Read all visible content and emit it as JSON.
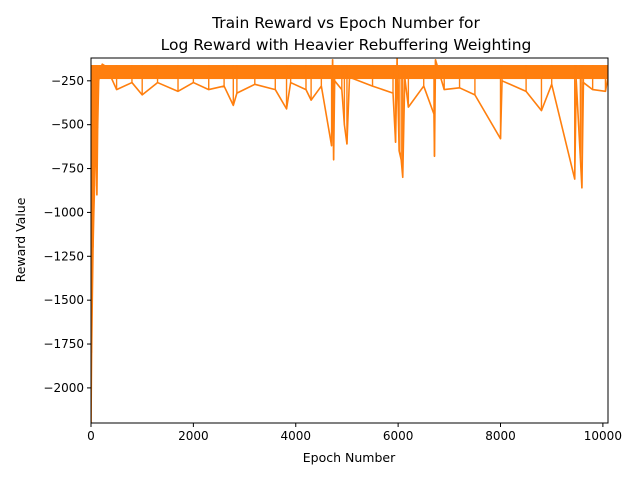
{
  "chart_data": {
    "type": "line",
    "title_line1": "Train Reward vs Epoch Number for",
    "title_line2": "Log Reward with Heavier Rebuffering Weighting",
    "xlabel": "Epoch Number",
    "ylabel": "Reward Value",
    "xlim": [
      0,
      10100
    ],
    "ylim": [
      -2200,
      -120
    ],
    "x_ticks": [
      0,
      2000,
      4000,
      6000,
      8000,
      10000
    ],
    "x_tick_labels": [
      "0",
      "2000",
      "4000",
      "6000",
      "8000",
      "10000"
    ],
    "y_ticks": [
      -2000,
      -1750,
      -1500,
      -1250,
      -1000,
      -750,
      -500,
      -250
    ],
    "y_tick_labels": [
      "−2000",
      "−1750",
      "−1500",
      "−1250",
      "−1000",
      "−750",
      "−500",
      "−250"
    ],
    "grid": false,
    "legend": "none",
    "series": [
      {
        "color": "#ff7f0e",
        "band_top": -160,
        "band_bottom": -240,
        "x_end": 10100,
        "points": [
          [
            0,
            -2200
          ],
          [
            12,
            -1800
          ],
          [
            25,
            -1500
          ],
          [
            40,
            -1200
          ],
          [
            55,
            -1000
          ],
          [
            70,
            -850
          ],
          [
            85,
            -650
          ],
          [
            100,
            -450
          ],
          [
            115,
            -900
          ],
          [
            130,
            -520
          ],
          [
            150,
            -250
          ],
          [
            180,
            -190
          ],
          [
            220,
            -155
          ],
          [
            300,
            -170
          ],
          [
            500,
            -300
          ],
          [
            800,
            -260
          ],
          [
            1000,
            -330
          ],
          [
            1300,
            -260
          ],
          [
            1700,
            -310
          ],
          [
            2000,
            -260
          ],
          [
            2300,
            -300
          ],
          [
            2600,
            -280
          ],
          [
            2780,
            -390
          ],
          [
            2850,
            -320
          ],
          [
            3200,
            -270
          ],
          [
            3600,
            -300
          ],
          [
            3820,
            -410
          ],
          [
            3900,
            -260
          ],
          [
            4200,
            -300
          ],
          [
            4300,
            -360
          ],
          [
            4500,
            -280
          ],
          [
            4700,
            -620
          ],
          [
            4720,
            -130
          ],
          [
            4740,
            -700
          ],
          [
            4760,
            -250
          ],
          [
            4900,
            -300
          ],
          [
            4950,
            -500
          ],
          [
            5000,
            -610
          ],
          [
            5050,
            -230
          ],
          [
            5500,
            -280
          ],
          [
            5900,
            -320
          ],
          [
            5950,
            -600
          ],
          [
            5980,
            -125
          ],
          [
            6020,
            -650
          ],
          [
            6060,
            -700
          ],
          [
            6090,
            -800
          ],
          [
            6130,
            -230
          ],
          [
            6200,
            -400
          ],
          [
            6500,
            -280
          ],
          [
            6700,
            -440
          ],
          [
            6710,
            -680
          ],
          [
            6730,
            -130
          ],
          [
            6900,
            -300
          ],
          [
            7200,
            -290
          ],
          [
            7500,
            -330
          ],
          [
            8000,
            -580
          ],
          [
            8030,
            -250
          ],
          [
            8500,
            -310
          ],
          [
            8800,
            -420
          ],
          [
            9000,
            -270
          ],
          [
            9450,
            -810
          ],
          [
            9480,
            -250
          ],
          [
            9560,
            -690
          ],
          [
            9590,
            -860
          ],
          [
            9620,
            -260
          ],
          [
            9800,
            -300
          ],
          [
            10050,
            -310
          ],
          [
            10100,
            -230
          ]
        ]
      }
    ]
  }
}
